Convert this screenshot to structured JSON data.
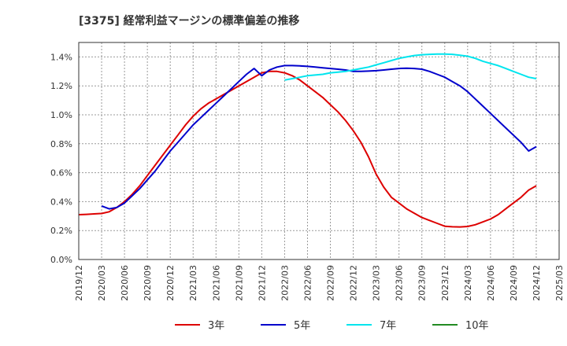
{
  "chart_data": {
    "type": "line",
    "title": "[3375]  経常利益マージンの標準偏差の推移",
    "xlabel": "",
    "ylabel": "",
    "ylim": [
      0,
      0.015
    ],
    "y_ticks": [
      {
        "value": 0.0,
        "label": "0.0%"
      },
      {
        "value": 0.002,
        "label": "0.2%"
      },
      {
        "value": 0.004,
        "label": "0.4%"
      },
      {
        "value": 0.006,
        "label": "0.6%"
      },
      {
        "value": 0.008,
        "label": "0.8%"
      },
      {
        "value": 0.01,
        "label": "1.0%"
      },
      {
        "value": 0.012,
        "label": "1.2%"
      },
      {
        "value": 0.014,
        "label": "1.4%"
      }
    ],
    "x_ticks": [
      "2019/12",
      "2020/03",
      "2020/06",
      "2020/09",
      "2020/12",
      "2021/03",
      "2021/06",
      "2021/09",
      "2021/12",
      "2022/03",
      "2022/06",
      "2022/09",
      "2022/12",
      "2023/03",
      "2023/06",
      "2023/09",
      "2023/12",
      "2024/03",
      "2024/06",
      "2024/09",
      "2024/12",
      "2025/03"
    ],
    "grid": true,
    "legend_position": "bottom",
    "series": [
      {
        "name": "3年",
        "color": "#dd0000",
        "points": [
          [
            "2019/12",
            0.0031
          ],
          [
            "2020/01",
            0.00312
          ],
          [
            "2020/02",
            0.00315
          ],
          [
            "2020/03",
            0.00318
          ],
          [
            "2020/04",
            0.0033
          ],
          [
            "2020/05",
            0.0036
          ],
          [
            "2020/06",
            0.004
          ],
          [
            "2020/07",
            0.0045
          ],
          [
            "2020/08",
            0.0051
          ],
          [
            "2020/09",
            0.0058
          ],
          [
            "2020/10",
            0.0065
          ],
          [
            "2020/11",
            0.0072
          ],
          [
            "2020/12",
            0.0079
          ],
          [
            "2021/01",
            0.0086
          ],
          [
            "2021/02",
            0.0093
          ],
          [
            "2021/03",
            0.0099
          ],
          [
            "2021/04",
            0.0104
          ],
          [
            "2021/05",
            0.0108
          ],
          [
            "2021/06",
            0.0111
          ],
          [
            "2021/07",
            0.0114
          ],
          [
            "2021/08",
            0.0117
          ],
          [
            "2021/09",
            0.012
          ],
          [
            "2021/10",
            0.0123
          ],
          [
            "2021/11",
            0.0126
          ],
          [
            "2021/12",
            0.0129
          ],
          [
            "2022/01",
            0.013
          ],
          [
            "2022/02",
            0.013
          ],
          [
            "2022/03",
            0.0129
          ],
          [
            "2022/04",
            0.0127
          ],
          [
            "2022/05",
            0.0124
          ],
          [
            "2022/06",
            0.012
          ],
          [
            "2022/07",
            0.0116
          ],
          [
            "2022/08",
            0.0112
          ],
          [
            "2022/09",
            0.0107
          ],
          [
            "2022/10",
            0.0102
          ],
          [
            "2022/11",
            0.0096
          ],
          [
            "2022/12",
            0.0089
          ],
          [
            "2023/01",
            0.0081
          ],
          [
            "2023/02",
            0.0071
          ],
          [
            "2023/03",
            0.0059
          ],
          [
            "2023/04",
            0.005
          ],
          [
            "2023/05",
            0.0043
          ],
          [
            "2023/06",
            0.0039
          ],
          [
            "2023/07",
            0.0035
          ],
          [
            "2023/08",
            0.0032
          ],
          [
            "2023/09",
            0.0029
          ],
          [
            "2023/10",
            0.0027
          ],
          [
            "2023/11",
            0.0025
          ],
          [
            "2023/12",
            0.0023
          ],
          [
            "2024/01",
            0.00226
          ],
          [
            "2024/02",
            0.00225
          ],
          [
            "2024/03",
            0.00228
          ],
          [
            "2024/04",
            0.0024
          ],
          [
            "2024/05",
            0.0026
          ],
          [
            "2024/06",
            0.0028
          ],
          [
            "2024/07",
            0.0031
          ],
          [
            "2024/08",
            0.0035
          ],
          [
            "2024/09",
            0.0039
          ],
          [
            "2024/10",
            0.0043
          ],
          [
            "2024/11",
            0.0048
          ],
          [
            "2024/12",
            0.0051
          ]
        ]
      },
      {
        "name": "5年",
        "color": "#0000cc",
        "points": [
          [
            "2020/03",
            0.0037
          ],
          [
            "2020/04",
            0.0035
          ],
          [
            "2020/05",
            0.0036
          ],
          [
            "2020/06",
            0.0039
          ],
          [
            "2020/07",
            0.0044
          ],
          [
            "2020/08",
            0.0049
          ],
          [
            "2020/09",
            0.0055
          ],
          [
            "2020/10",
            0.0061
          ],
          [
            "2020/11",
            0.0068
          ],
          [
            "2020/12",
            0.0075
          ],
          [
            "2021/01",
            0.0081
          ],
          [
            "2021/02",
            0.0087
          ],
          [
            "2021/03",
            0.0093
          ],
          [
            "2021/04",
            0.0098
          ],
          [
            "2021/05",
            0.0103
          ],
          [
            "2021/06",
            0.0108
          ],
          [
            "2021/07",
            0.0113
          ],
          [
            "2021/08",
            0.0118
          ],
          [
            "2021/09",
            0.0123
          ],
          [
            "2021/10",
            0.0128
          ],
          [
            "2021/11",
            0.0132
          ],
          [
            "2021/12",
            0.0127
          ],
          [
            "2022/01",
            0.0131
          ],
          [
            "2022/02",
            0.0133
          ],
          [
            "2022/03",
            0.0134
          ],
          [
            "2022/04",
            0.0134
          ],
          [
            "2022/05",
            0.01338
          ],
          [
            "2022/06",
            0.01335
          ],
          [
            "2022/07",
            0.0133
          ],
          [
            "2022/08",
            0.01325
          ],
          [
            "2022/09",
            0.0132
          ],
          [
            "2022/10",
            0.01315
          ],
          [
            "2022/11",
            0.0131
          ],
          [
            "2022/12",
            0.013
          ],
          [
            "2023/01",
            0.013
          ],
          [
            "2023/02",
            0.01302
          ],
          [
            "2023/03",
            0.01305
          ],
          [
            "2023/04",
            0.0131
          ],
          [
            "2023/05",
            0.01315
          ],
          [
            "2023/06",
            0.0132
          ],
          [
            "2023/07",
            0.01322
          ],
          [
            "2023/08",
            0.0132
          ],
          [
            "2023/09",
            0.01315
          ],
          [
            "2023/10",
            0.013
          ],
          [
            "2023/11",
            0.0128
          ],
          [
            "2023/12",
            0.0126
          ],
          [
            "2024/01",
            0.0123
          ],
          [
            "2024/02",
            0.012
          ],
          [
            "2024/03",
            0.0116
          ],
          [
            "2024/04",
            0.0111
          ],
          [
            "2024/05",
            0.0106
          ],
          [
            "2024/06",
            0.0101
          ],
          [
            "2024/07",
            0.0096
          ],
          [
            "2024/08",
            0.0091
          ],
          [
            "2024/09",
            0.0086
          ],
          [
            "2024/10",
            0.0081
          ],
          [
            "2024/11",
            0.0075
          ],
          [
            "2024/12",
            0.0078
          ]
        ]
      },
      {
        "name": "7年",
        "color": "#00e5ee",
        "points": [
          [
            "2022/03",
            0.0124
          ],
          [
            "2022/04",
            0.0125
          ],
          [
            "2022/05",
            0.0126
          ],
          [
            "2022/06",
            0.0127
          ],
          [
            "2022/07",
            0.01275
          ],
          [
            "2022/08",
            0.0128
          ],
          [
            "2022/09",
            0.0129
          ],
          [
            "2022/10",
            0.01295
          ],
          [
            "2022/11",
            0.013
          ],
          [
            "2022/12",
            0.0131
          ],
          [
            "2023/01",
            0.0132
          ],
          [
            "2023/02",
            0.0133
          ],
          [
            "2023/03",
            0.01345
          ],
          [
            "2023/04",
            0.0136
          ],
          [
            "2023/05",
            0.01375
          ],
          [
            "2023/06",
            0.0139
          ],
          [
            "2023/07",
            0.014
          ],
          [
            "2023/08",
            0.0141
          ],
          [
            "2023/09",
            0.01415
          ],
          [
            "2023/10",
            0.01418
          ],
          [
            "2023/11",
            0.0142
          ],
          [
            "2023/12",
            0.0142
          ],
          [
            "2024/01",
            0.01418
          ],
          [
            "2024/02",
            0.01412
          ],
          [
            "2024/03",
            0.01405
          ],
          [
            "2024/04",
            0.0139
          ],
          [
            "2024/05",
            0.0137
          ],
          [
            "2024/06",
            0.01355
          ],
          [
            "2024/07",
            0.0134
          ],
          [
            "2024/08",
            0.0132
          ],
          [
            "2024/09",
            0.013
          ],
          [
            "2024/10",
            0.0128
          ],
          [
            "2024/11",
            0.0126
          ],
          [
            "2024/12",
            0.0125
          ]
        ]
      },
      {
        "name": "10年",
        "color": "#228b22",
        "points": []
      }
    ]
  }
}
